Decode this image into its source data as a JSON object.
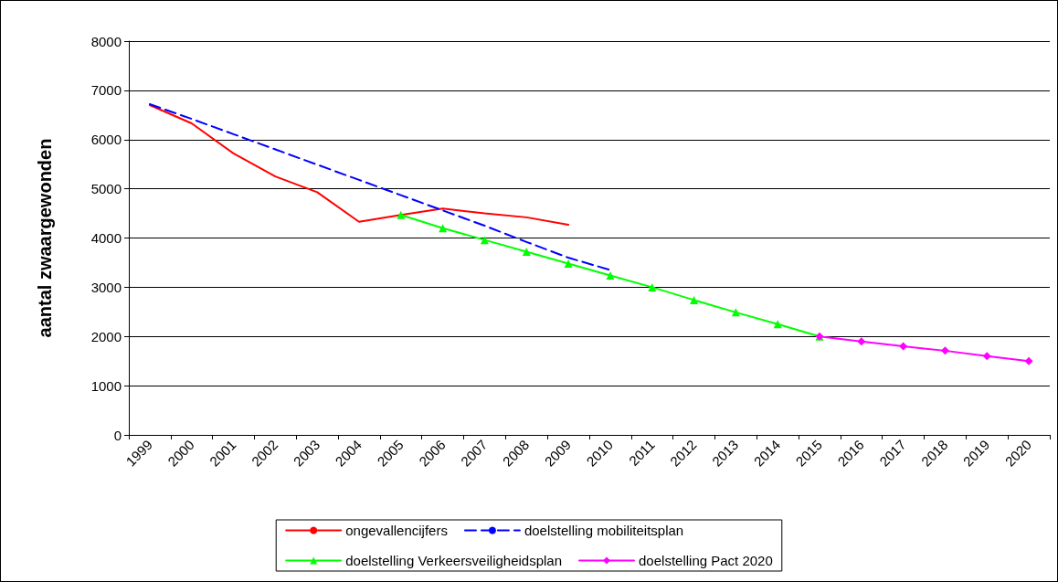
{
  "chart_data": {
    "type": "line",
    "ylabel": "aantal zwaargewonden",
    "categories": [
      "1999",
      "2000",
      "2001",
      "2002",
      "2003",
      "2004",
      "2005",
      "2006",
      "2007",
      "2008",
      "2009",
      "2010",
      "2011",
      "2012",
      "2013",
      "2014",
      "2015",
      "2016",
      "2017",
      "2018",
      "2019",
      "2020"
    ],
    "series": [
      {
        "name": "ongevallencijfers",
        "color": "#ff0000",
        "marker": "none",
        "line_style": "solid",
        "values": [
          6700,
          6330,
          5720,
          5250,
          4930,
          4330,
          4470,
          4600,
          4500,
          4420,
          4270,
          null,
          null,
          null,
          null,
          null,
          null,
          null,
          null,
          null,
          null,
          null
        ]
      },
      {
        "name": "doelstelling mobiliteitsplan",
        "color": "#0000ff",
        "marker": "none",
        "line_style": "dashed",
        "values": [
          6720,
          6420,
          6110,
          5800,
          5490,
          5180,
          4870,
          4560,
          4250,
          3920,
          3600,
          3350,
          null,
          null,
          null,
          null,
          null,
          null,
          null,
          null,
          null,
          null
        ]
      },
      {
        "name": "doelstelling Verkeersveiligheidsplan",
        "color": "#00ff00",
        "marker": "triangle",
        "line_style": "solid",
        "values": [
          null,
          null,
          null,
          null,
          null,
          null,
          4470,
          4200,
          3960,
          3720,
          3480,
          3240,
          3000,
          2740,
          2490,
          2250,
          2000,
          null,
          null,
          null,
          null,
          null
        ]
      },
      {
        "name": "doelstelling Pact 2020",
        "color": "#ff00ff",
        "marker": "diamond",
        "line_style": "solid",
        "values": [
          null,
          null,
          null,
          null,
          null,
          null,
          null,
          null,
          null,
          null,
          null,
          null,
          null,
          null,
          null,
          null,
          2000,
          1900,
          1800,
          1710,
          1600,
          1500
        ]
      }
    ],
    "ylim": [
      0,
      8000
    ],
    "yticks": [
      0,
      1000,
      2000,
      3000,
      4000,
      5000,
      6000,
      7000,
      8000
    ],
    "grid": "y",
    "legend": "bottom"
  }
}
